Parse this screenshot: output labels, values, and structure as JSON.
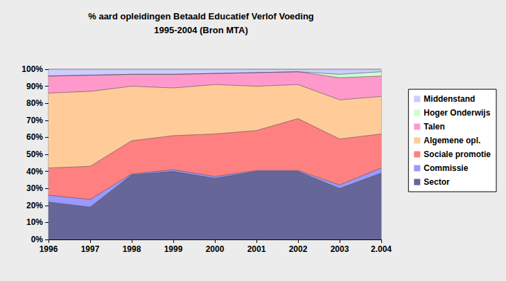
{
  "chart_data": {
    "type": "area",
    "title": "% aard opleidingen Betaald Educatief Verlof Voeding\n1995-2004 (Bron MTA)",
    "stacked": true,
    "grid": true,
    "legend": "right",
    "categories": [
      "1996",
      "1997",
      "1998",
      "1999",
      "2000",
      "2001",
      "2002",
      "2003",
      "2.004"
    ],
    "ylim": [
      0,
      100
    ],
    "yticks": [
      {
        "value": 0,
        "label": "0%"
      },
      {
        "value": 10,
        "label": "10%"
      },
      {
        "value": 20,
        "label": "20%"
      },
      {
        "value": 30,
        "label": "30%"
      },
      {
        "value": 40,
        "label": "40%"
      },
      {
        "value": 50,
        "label": "50%"
      },
      {
        "value": 60,
        "label": "60%"
      },
      {
        "value": 70,
        "label": "70%"
      },
      {
        "value": 80,
        "label": "80%"
      },
      {
        "value": 90,
        "label": "90%"
      },
      {
        "value": 100,
        "label": "100%"
      }
    ],
    "series": [
      {
        "name": "Sector",
        "color": "#666699",
        "values": [
          22,
          19,
          38,
          40,
          36,
          40,
          40,
          30,
          39
        ]
      },
      {
        "name": "Commissie",
        "color": "#9999ff",
        "values": [
          4,
          4.5,
          0.5,
          1,
          1,
          0.5,
          0.5,
          2,
          3
        ]
      },
      {
        "name": "Sociale promotie",
        "color": "#ff8080",
        "values": [
          16,
          19.5,
          19.5,
          20,
          25,
          23.5,
          30.5,
          27,
          20
        ]
      },
      {
        "name": "Algemene opl.",
        "color": "#ffcc99",
        "values": [
          44,
          44,
          32,
          28,
          29,
          26,
          20,
          23,
          22
        ]
      },
      {
        "name": "Talen",
        "color": "#ff99cc",
        "values": [
          10,
          9.5,
          7,
          8,
          6.5,
          8,
          7.5,
          13,
          12
        ]
      },
      {
        "name": "Hoger Onderwijs",
        "color": "#ccffcc",
        "values": [
          0,
          0,
          0,
          0,
          0,
          0,
          0,
          2,
          2.5
        ]
      },
      {
        "name": "Middenstand",
        "color": "#ccccff",
        "values": [
          4,
          3.5,
          3,
          3,
          2.5,
          2,
          1.5,
          3,
          1.5
        ]
      }
    ]
  }
}
